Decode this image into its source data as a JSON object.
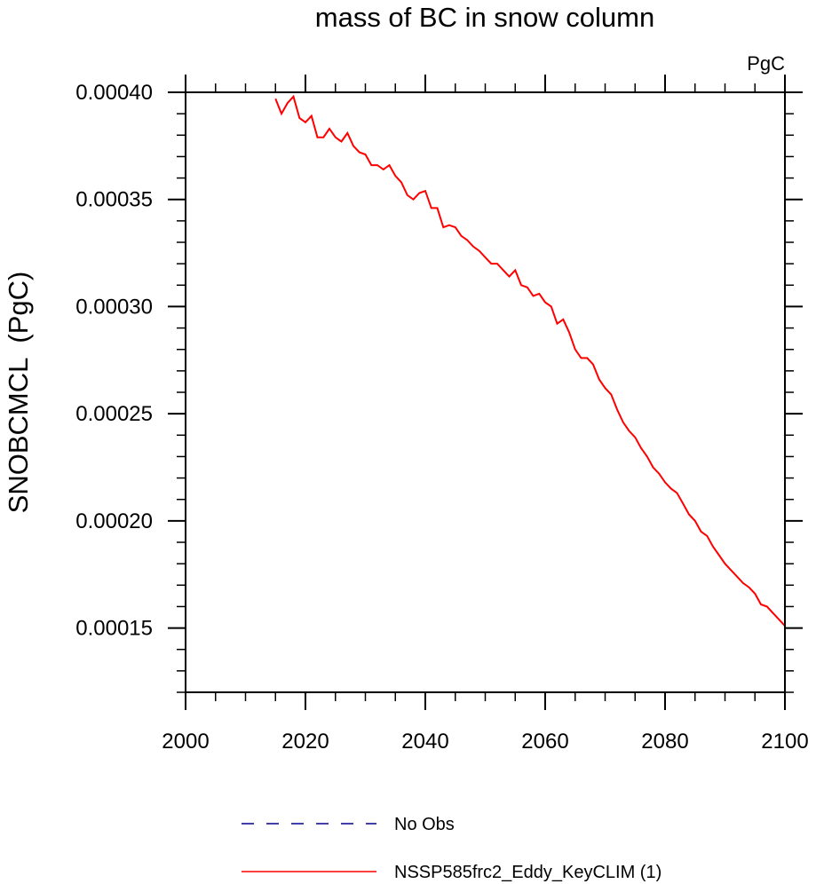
{
  "chart_data": {
    "type": "line",
    "title": "mass of BC in snow column",
    "units_label": "PgC",
    "ylabel": "SNOBCMCL  (PgC)",
    "xlabel": "",
    "xlim": [
      2000,
      2100
    ],
    "ylim": [
      0.00012,
      0.0004
    ],
    "x_ticks": [
      2000,
      2020,
      2040,
      2060,
      2080,
      2100
    ],
    "x_tick_labels": [
      "2000",
      "2020",
      "2040",
      "2060",
      "2080",
      "2100"
    ],
    "y_ticks": [
      0.00015,
      0.0002,
      0.00025,
      0.0003,
      0.00035,
      0.0004
    ],
    "y_tick_labels": [
      "0.00015",
      "0.00020",
      "0.00025",
      "0.00030",
      "0.00035",
      "0.00040"
    ],
    "grid": false,
    "legend_position": "bottom",
    "series": [
      {
        "name": "No Obs",
        "color": "#00008b",
        "dash": "dashed",
        "x": [],
        "values": []
      },
      {
        "name": "NSSP585frc2_Eddy_KeyCLIM (1)",
        "color": "#ff0000",
        "dash": "solid",
        "x": [
          2015,
          2016,
          2017,
          2018,
          2019,
          2020,
          2021,
          2022,
          2023,
          2024,
          2025,
          2026,
          2027,
          2028,
          2029,
          2030,
          2031,
          2032,
          2033,
          2034,
          2035,
          2036,
          2037,
          2038,
          2039,
          2040,
          2041,
          2042,
          2043,
          2044,
          2045,
          2046,
          2047,
          2048,
          2049,
          2050,
          2051,
          2052,
          2053,
          2054,
          2055,
          2056,
          2057,
          2058,
          2059,
          2060,
          2061,
          2062,
          2063,
          2064,
          2065,
          2066,
          2067,
          2068,
          2069,
          2070,
          2071,
          2072,
          2073,
          2074,
          2075,
          2076,
          2077,
          2078,
          2079,
          2080,
          2081,
          2082,
          2083,
          2084,
          2085,
          2086,
          2087,
          2088,
          2089,
          2090,
          2091,
          2092,
          2093,
          2094,
          2095,
          2096,
          2097,
          2098,
          2099,
          2100
        ],
        "values": [
          0.000397,
          0.00039,
          0.000395,
          0.000398,
          0.000388,
          0.000386,
          0.000389,
          0.000379,
          0.000379,
          0.000383,
          0.000379,
          0.000377,
          0.000381,
          0.000375,
          0.000372,
          0.000371,
          0.000366,
          0.000366,
          0.000364,
          0.000366,
          0.000361,
          0.000358,
          0.000352,
          0.00035,
          0.000353,
          0.000354,
          0.000346,
          0.000346,
          0.000337,
          0.000338,
          0.000337,
          0.000333,
          0.000331,
          0.000328,
          0.000326,
          0.000323,
          0.00032,
          0.00032,
          0.000317,
          0.000314,
          0.000317,
          0.00031,
          0.000309,
          0.000305,
          0.000306,
          0.000302,
          0.0003,
          0.000292,
          0.000294,
          0.000288,
          0.00028,
          0.000276,
          0.000276,
          0.000273,
          0.000266,
          0.000262,
          0.000259,
          0.000252,
          0.000246,
          0.000242,
          0.000239,
          0.000234,
          0.00023,
          0.000225,
          0.000222,
          0.000218,
          0.000215,
          0.000213,
          0.000208,
          0.000203,
          0.0002,
          0.000195,
          0.000193,
          0.000188,
          0.000184,
          0.00018,
          0.000177,
          0.000174,
          0.000171,
          0.000169,
          0.000166,
          0.000161,
          0.00016,
          0.000157,
          0.000154,
          0.000151
        ]
      }
    ]
  }
}
